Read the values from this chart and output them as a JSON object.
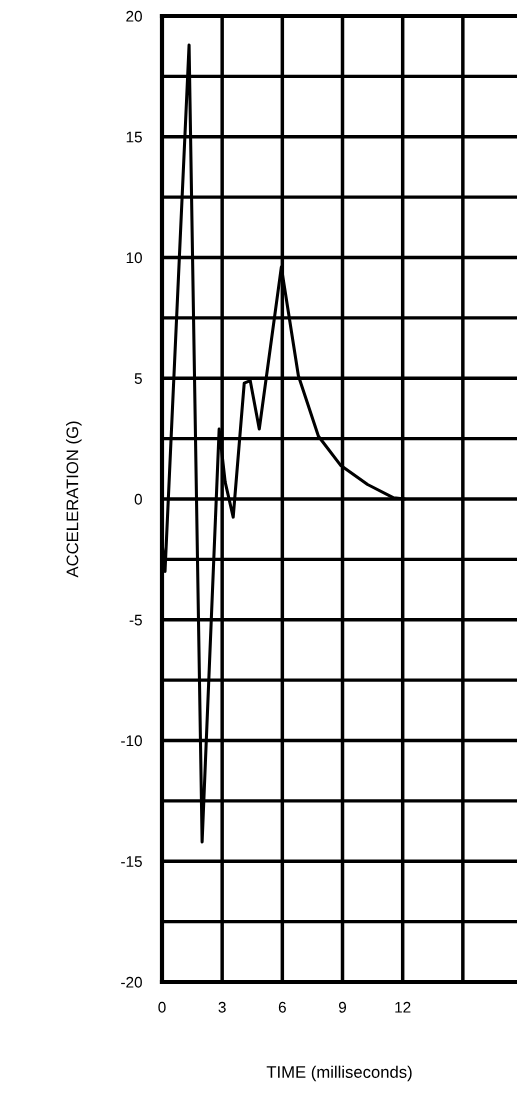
{
  "chart_data": {
    "type": "line",
    "xlabel": "TIME (milliseconds)",
    "ylabel": "ACCELERATION (G)",
    "x": [
      0,
      0.15,
      1.35,
      2.0,
      2.85,
      3.15,
      3.55,
      4.1,
      4.4,
      4.85,
      5.95,
      6.8,
      7.8,
      8.9,
      10.25,
      11.55,
      12.1
    ],
    "series": [
      {
        "color": "#000000",
        "values": [
          -1.8,
          -3.0,
          18.8,
          -14.2,
          2.9,
          0.7,
          -0.75,
          4.8,
          4.9,
          2.9,
          9.6,
          5.1,
          2.6,
          1.4,
          0.6,
          0.05,
          0
        ]
      }
    ],
    "xlim": [
      0,
      17.7
    ],
    "xticks": [
      0,
      3,
      6,
      9,
      12,
      {
        "value": 15,
        "label": null
      }
    ],
    "ylim": [
      -20,
      20
    ],
    "yticks": [
      -20,
      {
        "value": -17.5,
        "label": null
      },
      -15,
      {
        "value": -12.5,
        "label": null
      },
      -10,
      {
        "value": -7.5,
        "label": null
      },
      -5,
      {
        "value": -2.5,
        "label": null
      },
      0,
      {
        "value": 2.5,
        "label": null
      },
      5,
      {
        "value": 7.5,
        "label": null
      },
      10,
      {
        "value": 12.5,
        "label": null
      },
      15,
      {
        "value": 17.5,
        "label": null
      },
      20
    ],
    "grid": true,
    "line_style": "solid",
    "marker": "none"
  }
}
